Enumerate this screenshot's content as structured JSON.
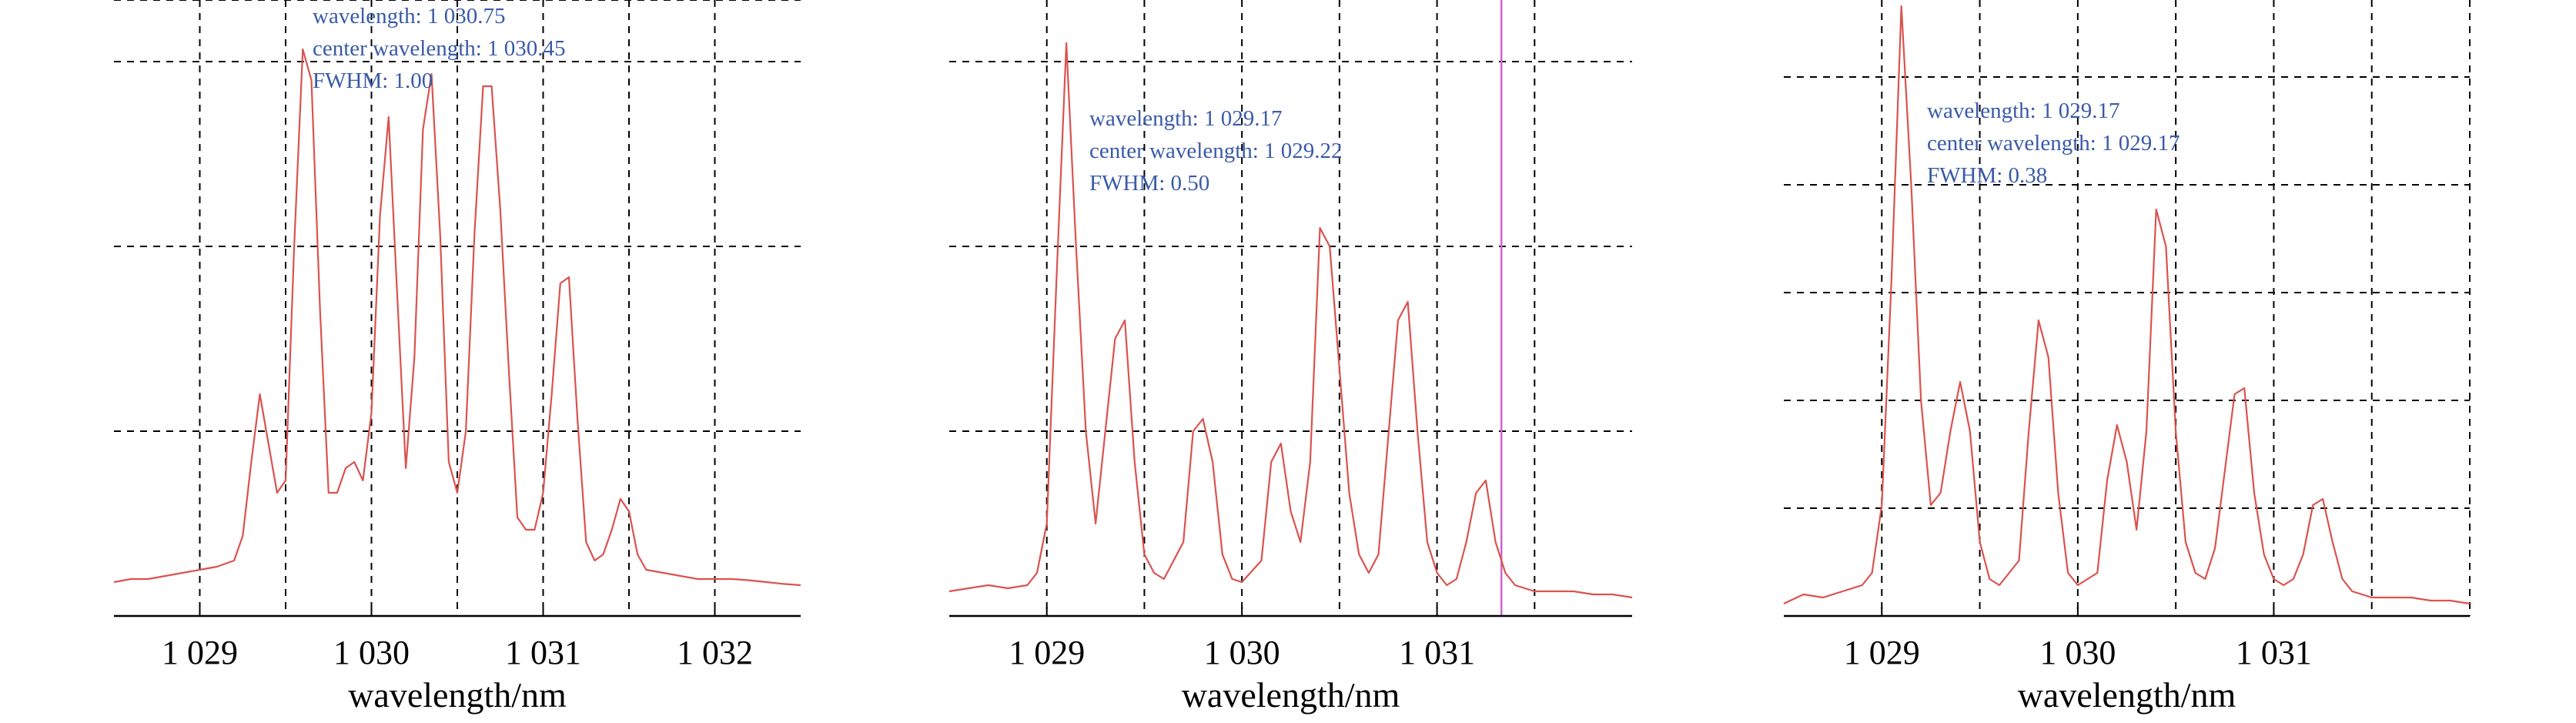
{
  "colors": {
    "trace": "#d9534f",
    "annotation": "#3a5aa8",
    "grid": "#000000",
    "cursor": "#cc66cc"
  },
  "chart_data": [
    {
      "type": "line",
      "xlabel": "wavelength/nm",
      "xlim": [
        1028.5,
        1032.5
      ],
      "ylim": [
        0,
        1
      ],
      "grid": true,
      "xticks": [
        1029,
        1030,
        1031,
        1032
      ],
      "xtick_labels": [
        "1 029",
        "1 030",
        "1 031",
        "1 032"
      ],
      "vgrid": [
        1029,
        1029.5,
        1030,
        1030.5,
        1031,
        1031.5,
        1032
      ],
      "hgrid": [
        0.3,
        0.6,
        0.9,
        1.0
      ],
      "annotation": [
        "wavelength: 1 030.75",
        "center wavelength: 1 030.45",
        "FWHM: 1.00"
      ],
      "series": [
        {
          "x": [
            1028.5,
            1028.6,
            1028.7,
            1028.8,
            1028.9,
            1029.0,
            1029.1,
            1029.2,
            1029.25,
            1029.3,
            1029.35,
            1029.4,
            1029.45,
            1029.5,
            1029.55,
            1029.6,
            1029.65,
            1029.7,
            1029.75,
            1029.8,
            1029.85,
            1029.9,
            1029.95,
            1030.0,
            1030.05,
            1030.1,
            1030.15,
            1030.2,
            1030.25,
            1030.3,
            1030.35,
            1030.4,
            1030.45,
            1030.5,
            1030.55,
            1030.6,
            1030.65,
            1030.7,
            1030.75,
            1030.8,
            1030.85,
            1030.9,
            1030.95,
            1031.0,
            1031.05,
            1031.1,
            1031.15,
            1031.2,
            1031.25,
            1031.3,
            1031.35,
            1031.4,
            1031.45,
            1031.5,
            1031.55,
            1031.6,
            1031.7,
            1031.8,
            1031.9,
            1032.0,
            1032.1,
            1032.2,
            1032.3,
            1032.4,
            1032.5
          ],
          "y": [
            0.055,
            0.06,
            0.06,
            0.065,
            0.07,
            0.075,
            0.08,
            0.09,
            0.13,
            0.25,
            0.36,
            0.28,
            0.2,
            0.22,
            0.6,
            0.92,
            0.87,
            0.5,
            0.2,
            0.2,
            0.24,
            0.25,
            0.22,
            0.33,
            0.65,
            0.81,
            0.52,
            0.24,
            0.42,
            0.79,
            0.88,
            0.62,
            0.25,
            0.2,
            0.3,
            0.62,
            0.86,
            0.86,
            0.66,
            0.4,
            0.16,
            0.14,
            0.14,
            0.2,
            0.36,
            0.54,
            0.55,
            0.32,
            0.12,
            0.09,
            0.1,
            0.14,
            0.19,
            0.17,
            0.1,
            0.075,
            0.07,
            0.065,
            0.06,
            0.06,
            0.06,
            0.058,
            0.055,
            0.052,
            0.05
          ]
        }
      ]
    },
    {
      "type": "line",
      "xlabel": "wavelength/nm",
      "xlim": [
        1028.5,
        1032.0
      ],
      "ylim": [
        0,
        1
      ],
      "grid": true,
      "xticks": [
        1029,
        1030,
        1031
      ],
      "xtick_labels": [
        "1 029",
        "1 030",
        "1 031"
      ],
      "vgrid": [
        1029,
        1029.5,
        1030,
        1030.5,
        1031,
        1031.5
      ],
      "hgrid": [
        0.3,
        0.6,
        0.9
      ],
      "cursor_x": 1031.33,
      "annotation": [
        "wavelength: 1 029.17",
        "center wavelength: 1 029.22",
        "FWHM: 0.50"
      ],
      "series": [
        {
          "x": [
            1028.5,
            1028.6,
            1028.7,
            1028.8,
            1028.9,
            1028.95,
            1029.0,
            1029.05,
            1029.1,
            1029.15,
            1029.2,
            1029.25,
            1029.3,
            1029.35,
            1029.4,
            1029.45,
            1029.5,
            1029.55,
            1029.6,
            1029.7,
            1029.75,
            1029.8,
            1029.85,
            1029.9,
            1029.95,
            1030.0,
            1030.1,
            1030.15,
            1030.2,
            1030.25,
            1030.3,
            1030.35,
            1030.4,
            1030.45,
            1030.5,
            1030.55,
            1030.6,
            1030.65,
            1030.7,
            1030.8,
            1030.85,
            1030.9,
            1030.95,
            1031.0,
            1031.05,
            1031.1,
            1031.15,
            1031.2,
            1031.25,
            1031.3,
            1031.35,
            1031.4,
            1031.45,
            1031.5,
            1031.55,
            1031.6,
            1031.7,
            1031.8,
            1031.9,
            1032.0
          ],
          "y": [
            0.04,
            0.045,
            0.05,
            0.045,
            0.05,
            0.07,
            0.15,
            0.55,
            0.93,
            0.6,
            0.3,
            0.15,
            0.3,
            0.45,
            0.48,
            0.25,
            0.1,
            0.07,
            0.06,
            0.12,
            0.3,
            0.32,
            0.25,
            0.1,
            0.06,
            0.055,
            0.09,
            0.25,
            0.28,
            0.17,
            0.12,
            0.25,
            0.63,
            0.6,
            0.4,
            0.2,
            0.1,
            0.07,
            0.1,
            0.48,
            0.51,
            0.3,
            0.12,
            0.07,
            0.05,
            0.06,
            0.12,
            0.2,
            0.22,
            0.12,
            0.07,
            0.05,
            0.045,
            0.04,
            0.04,
            0.04,
            0.04,
            0.035,
            0.035,
            0.03
          ]
        }
      ]
    },
    {
      "type": "line",
      "xlabel": "wavelength/nm",
      "xlim": [
        1028.5,
        1032.0
      ],
      "ylim": [
        0,
        1
      ],
      "grid": true,
      "xticks": [
        1029,
        1030,
        1031
      ],
      "xtick_labels": [
        "1 029",
        "1 030",
        "1 031"
      ],
      "vgrid": [
        1029,
        1029.5,
        1030,
        1030.5,
        1031,
        1031.5,
        1032
      ],
      "hgrid": [
        0.175,
        0.35,
        0.525,
        0.7,
        0.875
      ],
      "annotation": [
        "wavelength: 1 029.17",
        "center wavelength: 1 029.17",
        "FWHM: 0.38"
      ],
      "series": [
        {
          "x": [
            1028.5,
            1028.6,
            1028.7,
            1028.8,
            1028.9,
            1028.95,
            1029.0,
            1029.05,
            1029.1,
            1029.15,
            1029.2,
            1029.25,
            1029.3,
            1029.35,
            1029.4,
            1029.45,
            1029.5,
            1029.55,
            1029.6,
            1029.7,
            1029.75,
            1029.8,
            1029.85,
            1029.9,
            1029.95,
            1030.0,
            1030.1,
            1030.15,
            1030.2,
            1030.25,
            1030.3,
            1030.35,
            1030.4,
            1030.45,
            1030.5,
            1030.55,
            1030.6,
            1030.65,
            1030.7,
            1030.8,
            1030.85,
            1030.9,
            1030.95,
            1031.0,
            1031.05,
            1031.1,
            1031.15,
            1031.2,
            1031.25,
            1031.3,
            1031.35,
            1031.4,
            1031.45,
            1031.5,
            1031.55,
            1031.6,
            1031.7,
            1031.8,
            1031.9,
            1032.0
          ],
          "y": [
            0.02,
            0.035,
            0.03,
            0.04,
            0.05,
            0.07,
            0.18,
            0.55,
            0.99,
            0.7,
            0.35,
            0.18,
            0.2,
            0.3,
            0.38,
            0.3,
            0.12,
            0.06,
            0.05,
            0.09,
            0.3,
            0.48,
            0.42,
            0.2,
            0.07,
            0.05,
            0.07,
            0.22,
            0.31,
            0.25,
            0.14,
            0.3,
            0.66,
            0.6,
            0.3,
            0.12,
            0.07,
            0.06,
            0.11,
            0.36,
            0.37,
            0.2,
            0.1,
            0.06,
            0.05,
            0.06,
            0.1,
            0.18,
            0.19,
            0.12,
            0.06,
            0.04,
            0.035,
            0.03,
            0.03,
            0.03,
            0.03,
            0.025,
            0.025,
            0.02
          ]
        }
      ]
    }
  ]
}
